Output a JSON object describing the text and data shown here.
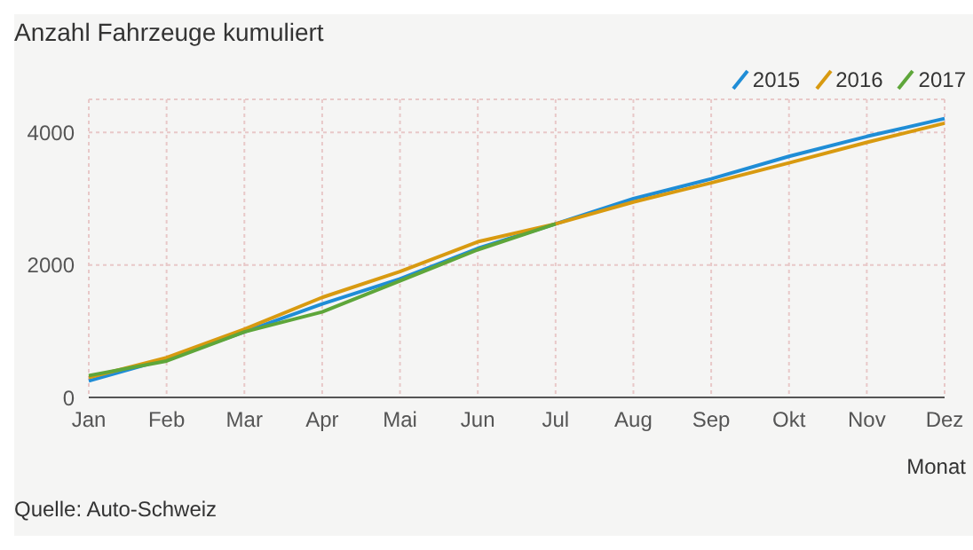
{
  "chart_data": {
    "type": "line",
    "title": "Anzahl Fahrzeuge kumuliert",
    "xlabel": "Monat",
    "categories": [
      "Jan",
      "Feb",
      "Mar",
      "Apr",
      "Mai",
      "Jun",
      "Jul",
      "Aug",
      "Sep",
      "Okt",
      "Nov",
      "Dez"
    ],
    "series": [
      {
        "name": "2015",
        "color": "#1f8dd6",
        "values": [
          250,
          580,
          990,
          1410,
          1790,
          2250,
          2620,
          3000,
          3300,
          3640,
          3940,
          4210
        ]
      },
      {
        "name": "2016",
        "color": "#d89a10",
        "values": [
          300,
          600,
          1030,
          1510,
          1900,
          2350,
          2620,
          2950,
          3240,
          3540,
          3850,
          4140
        ]
      },
      {
        "name": "2017",
        "color": "#5ea63a",
        "values": [
          330,
          550,
          990,
          1290,
          1760,
          2230,
          2620,
          null,
          null,
          null,
          null,
          null
        ]
      }
    ],
    "ylim": [
      0,
      4500
    ],
    "yticks": [
      0,
      2000,
      4000
    ],
    "grid": true,
    "legend": "top right",
    "marker": "none",
    "line_style": "solid",
    "annotations": [
      "Quelle: Auto-Schweiz"
    ]
  }
}
